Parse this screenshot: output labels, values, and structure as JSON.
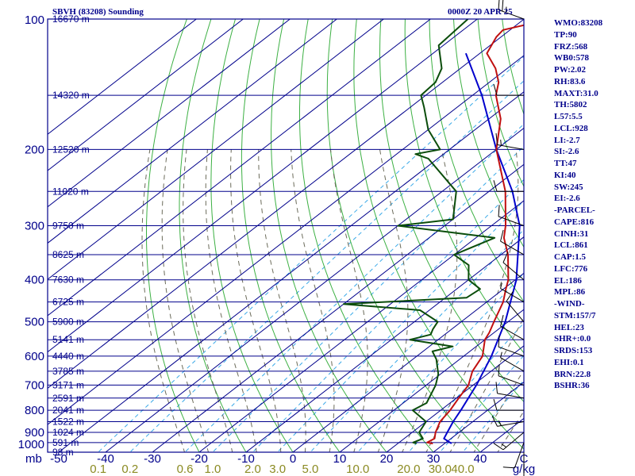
{
  "header": {
    "station": "SBVH (83208) Sounding",
    "time": "0000Z 20 APR 25"
  },
  "indices": [
    "WMO:83208",
    "TP:90",
    "FRZ:568",
    "WB0:578",
    "PW:2.02",
    "RH:83.6",
    "MAXT:31.0",
    "TH:5802",
    "L57:5.5",
    "LCL:928",
    "LI:-2.7",
    "SI:-2.6",
    "TT:47",
    "KI:40",
    "SW:245",
    "EI:-2.6",
    "-PARCEL-",
    "CAPE:816",
    "CINH:31",
    "LCL:861",
    "CAP:1.5",
    "LFC:776",
    "EL:186",
    "MPL:86",
    "-WIND-",
    "STM:157/7",
    "HEL:23",
    "SHR+:0.0",
    "SRDS:153",
    "EHI:0.1",
    "BRN:22.8",
    "BSHR:36"
  ],
  "colors": {
    "isobar": "#00008b",
    "isotherm": "#00008b",
    "dry_adiabat": "#3cb043",
    "moist_adiabat": "#6b6b5a",
    "mixing_ratio": "#39a9e8",
    "temperature": "#c01010",
    "dewpoint": "#0b4d0b",
    "parcel": "#0000cc",
    "text": "#00008b",
    "mixing_label": "#8b8b22"
  },
  "chart_data": {
    "type": "skew-t log-p",
    "pressure_axis_label": "mb",
    "pressure_range": [
      1000,
      100
    ],
    "pressure_ticks": [
      100,
      200,
      300,
      400,
      500,
      600,
      700,
      800,
      900,
      1000
    ],
    "temperature_axis_label": "C",
    "temperature_ticks": [
      -50,
      -40,
      -30,
      -20,
      -10,
      0,
      10,
      20,
      30,
      40
    ],
    "mixing_ratio_label": "g/kg",
    "mixing_ratio_ticks": [
      "0.1",
      "0.2",
      "0.6",
      "1.0",
      "2.0",
      "3.0",
      "5.0",
      "10.0",
      "20.0",
      "30.0",
      "40.0"
    ],
    "height_levels": [
      {
        "p": 100,
        "label": "16670 m"
      },
      {
        "p": 150,
        "label": "14320 m"
      },
      {
        "p": 200,
        "label": "12520 m"
      },
      {
        "p": 250,
        "label": "11020 m"
      },
      {
        "p": 300,
        "label": "9750 m"
      },
      {
        "p": 350,
        "label": "8625 m"
      },
      {
        "p": 400,
        "label": "7630 m"
      },
      {
        "p": 450,
        "label": "6725 m"
      },
      {
        "p": 500,
        "label": "5900 m"
      },
      {
        "p": 550,
        "label": "5141 m"
      },
      {
        "p": 600,
        "label": "4440 m"
      },
      {
        "p": 650,
        "label": "3785 m"
      },
      {
        "p": 700,
        "label": "3171 m"
      },
      {
        "p": 750,
        "label": "2591 m"
      },
      {
        "p": 800,
        "label": "2041 m"
      },
      {
        "p": 850,
        "label": "1522 m"
      },
      {
        "p": 900,
        "label": "1024 m"
      },
      {
        "p": 950,
        "label": "591 m"
      },
      {
        "p": 1000,
        "label": "98 m"
      }
    ],
    "temperature_profile": [
      [
        955,
        27.5
      ],
      [
        950,
        26.0
      ],
      [
        930,
        26.5
      ],
      [
        900,
        25.0
      ],
      [
        850,
        23.0
      ],
      [
        800,
        22.0
      ],
      [
        750,
        20.5
      ],
      [
        700,
        19.0
      ],
      [
        650,
        16.0
      ],
      [
        600,
        14.0
      ],
      [
        550,
        10.0
      ],
      [
        530,
        9.0
      ],
      [
        500,
        7.0
      ],
      [
        450,
        3.5
      ],
      [
        420,
        0.5
      ],
      [
        400,
        -1.5
      ],
      [
        350,
        -8.5
      ],
      [
        320,
        -14.0
      ],
      [
        300,
        -17.0
      ],
      [
        250,
        -26.5
      ],
      [
        200,
        -40.0
      ],
      [
        170,
        -47.5
      ],
      [
        150,
        -55.0
      ],
      [
        140,
        -58.0
      ],
      [
        130,
        -62.5
      ],
      [
        120,
        -68.5
      ],
      [
        110,
        -71.0
      ],
      [
        106,
        -71.5
      ],
      [
        103,
        -68.0
      ],
      [
        100,
        -66.0
      ]
    ],
    "dewpoint_profile": [
      [
        955,
        24.0
      ],
      [
        950,
        23.0
      ],
      [
        930,
        24.0
      ],
      [
        900,
        21.5
      ],
      [
        850,
        20.0
      ],
      [
        800,
        14.0
      ],
      [
        770,
        15.0
      ],
      [
        700,
        12.0
      ],
      [
        660,
        9.5
      ],
      [
        610,
        5.0
      ],
      [
        585,
        2.0
      ],
      [
        570,
        5.0
      ],
      [
        550,
        -6.0
      ],
      [
        535,
        -3.0
      ],
      [
        520,
        -4.0
      ],
      [
        500,
        -5.0
      ],
      [
        470,
        -12.0
      ],
      [
        455,
        -30.0
      ],
      [
        440,
        -5.5
      ],
      [
        420,
        -5.0
      ],
      [
        400,
        -10.0
      ],
      [
        370,
        -14.0
      ],
      [
        350,
        -20.0
      ],
      [
        320,
        -16.0
      ],
      [
        300,
        -40.0
      ],
      [
        290,
        -30.0
      ],
      [
        250,
        -37.0
      ],
      [
        210,
        -52.0
      ],
      [
        205,
        -56.0
      ],
      [
        200,
        -52.0
      ],
      [
        180,
        -60.0
      ],
      [
        160,
        -67.0
      ],
      [
        150,
        -71.0
      ],
      [
        140,
        -71.5
      ],
      [
        130,
        -74.0
      ],
      [
        115,
        -81.0
      ],
      [
        100,
        -82.0
      ]
    ],
    "parcel_profile": [
      [
        955,
        31.5
      ],
      [
        930,
        28.5
      ],
      [
        900,
        27.5
      ],
      [
        850,
        25.8
      ],
      [
        800,
        24.3
      ],
      [
        700,
        20.7
      ],
      [
        600,
        15.9
      ],
      [
        500,
        9.4
      ],
      [
        400,
        0.2
      ],
      [
        300,
        -14.0
      ],
      [
        250,
        -25.0
      ],
      [
        200,
        -40.0
      ],
      [
        150,
        -58.0
      ],
      [
        120,
        -73.0
      ]
    ],
    "wind_barbs": [
      {
        "p": 100,
        "dir": 290,
        "spd": 25
      },
      {
        "p": 150,
        "dir": 270,
        "spd": 10
      },
      {
        "p": 200,
        "dir": 280,
        "spd": 15
      },
      {
        "p": 250,
        "dir": 270,
        "spd": 10
      },
      {
        "p": 300,
        "dir": 290,
        "spd": 10
      },
      {
        "p": 350,
        "dir": 300,
        "spd": 10
      },
      {
        "p": 400,
        "dir": 310,
        "spd": 10
      },
      {
        "p": 450,
        "dir": 300,
        "spd": 5
      },
      {
        "p": 500,
        "dir": 320,
        "spd": 10
      },
      {
        "p": 550,
        "dir": 300,
        "spd": 10
      },
      {
        "p": 600,
        "dir": 290,
        "spd": 10
      },
      {
        "p": 650,
        "dir": 300,
        "spd": 5
      },
      {
        "p": 700,
        "dir": 290,
        "spd": 10
      },
      {
        "p": 750,
        "dir": 280,
        "spd": 10
      },
      {
        "p": 800,
        "dir": 270,
        "spd": 10
      },
      {
        "p": 850,
        "dir": 260,
        "spd": 15
      },
      {
        "p": 900,
        "dir": 230,
        "spd": 15
      },
      {
        "p": 950,
        "dir": 200,
        "spd": 10
      },
      {
        "p": 1000,
        "dir": 180,
        "spd": 10
      }
    ]
  }
}
